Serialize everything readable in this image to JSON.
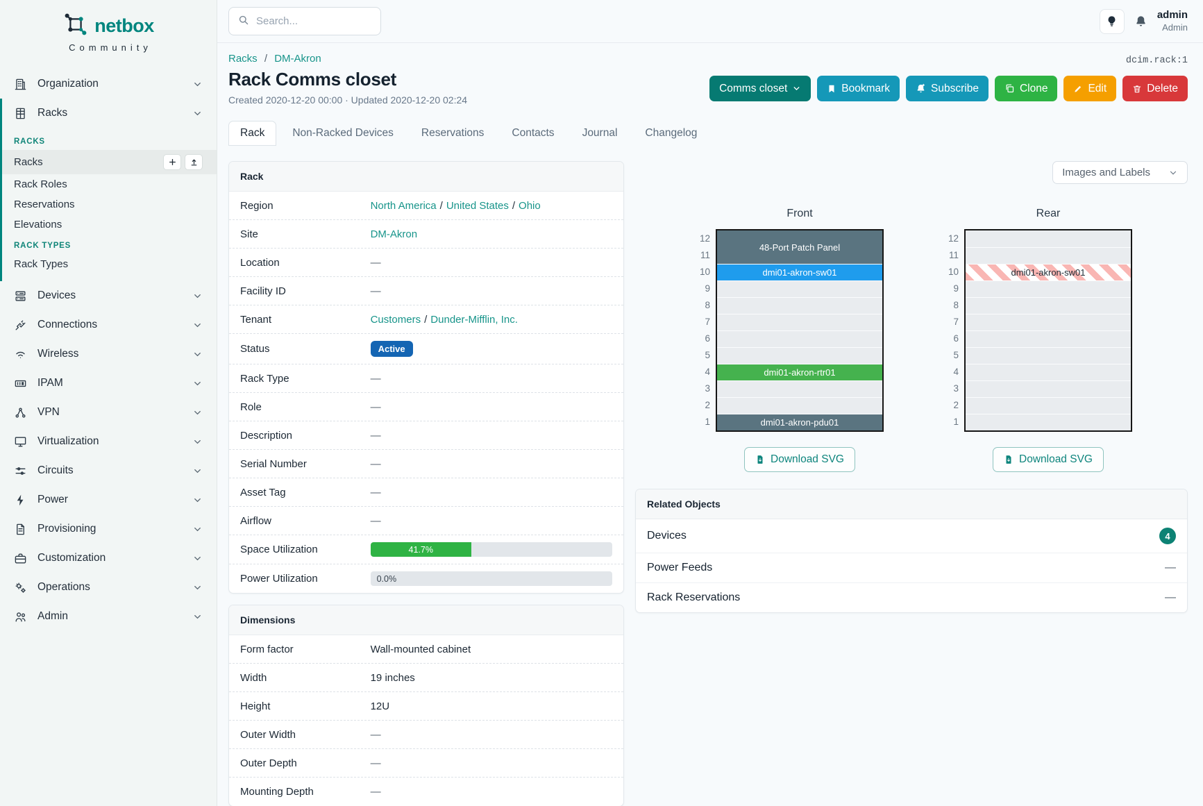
{
  "brand": {
    "name": "netbox",
    "subtitle": "Community"
  },
  "ui": {
    "crumb_sep": "/",
    "link_sep": "/"
  },
  "colors": {
    "brand_teal": "#00857e",
    "link_teal": "#17948a",
    "status_active_bg": "#1465b3",
    "util_green": "#2fb344",
    "device_slate": "#5a7480",
    "device_blue": "#1f9ced",
    "device_green": "#45b24e",
    "badge_teal": "#0d8274",
    "btn_cyan": "#1598b8",
    "btn_green": "#2eb344",
    "btn_orange": "#f59f00",
    "btn_red": "#d8383a"
  },
  "sidebar": {
    "top": [
      {
        "label": "Organization"
      },
      {
        "label": "Racks"
      }
    ],
    "groups": [
      {
        "header": "RACKS",
        "items": [
          {
            "label": "Racks",
            "active": true
          },
          {
            "label": "Rack Roles"
          },
          {
            "label": "Reservations"
          },
          {
            "label": "Elevations"
          }
        ]
      },
      {
        "header": "RACK TYPES",
        "items": [
          {
            "label": "Rack Types"
          }
        ]
      }
    ],
    "items": [
      {
        "label": "Devices"
      },
      {
        "label": "Connections"
      },
      {
        "label": "Wireless"
      },
      {
        "label": "IPAM"
      },
      {
        "label": "VPN"
      },
      {
        "label": "Virtualization"
      },
      {
        "label": "Circuits"
      },
      {
        "label": "Power"
      },
      {
        "label": "Provisioning"
      },
      {
        "label": "Customization"
      },
      {
        "label": "Operations"
      },
      {
        "label": "Admin"
      }
    ]
  },
  "topbar": {
    "search_placeholder": "Search...",
    "user": {
      "username": "admin",
      "role": "Admin"
    }
  },
  "header": {
    "breadcrumb": [
      "Racks",
      "DM-Akron"
    ],
    "title": "Rack Comms closet",
    "meta": "Created 2020-12-20 00:00 · Updated 2020-12-20 02:24",
    "object_id": "dcim.rack:1",
    "actions": {
      "rename": "Comms closet",
      "bookmark": "Bookmark",
      "subscribe": "Subscribe",
      "clone": "Clone",
      "edit": "Edit",
      "delete": "Delete"
    }
  },
  "tabs": [
    {
      "label": "Rack"
    },
    {
      "label": "Non-Racked Devices"
    },
    {
      "label": "Reservations"
    },
    {
      "label": "Contacts"
    },
    {
      "label": "Journal"
    },
    {
      "label": "Changelog"
    }
  ],
  "rack": {
    "title": "Rack",
    "rows": {
      "region": {
        "label": "Region",
        "links": [
          "North America",
          "United States",
          "Ohio"
        ]
      },
      "site": {
        "label": "Site",
        "link": "DM-Akron"
      },
      "location": {
        "label": "Location",
        "value": "—"
      },
      "facility": {
        "label": "Facility ID",
        "value": "—"
      },
      "tenant": {
        "label": "Tenant",
        "links": [
          "Customers",
          "Dunder-Mifflin, Inc."
        ]
      },
      "status": {
        "label": "Status",
        "badge": "Active"
      },
      "rack_type": {
        "label": "Rack Type",
        "value": "—"
      },
      "role": {
        "label": "Role",
        "value": "—"
      },
      "description": {
        "label": "Description",
        "value": "—"
      },
      "serial": {
        "label": "Serial Number",
        "value": "—"
      },
      "asset": {
        "label": "Asset Tag",
        "value": "—"
      },
      "airflow": {
        "label": "Airflow",
        "value": "—"
      },
      "space_util": {
        "label": "Space Utilization",
        "percent": 41.7,
        "text": "41.7%"
      },
      "power_util": {
        "label": "Power Utilization",
        "percent": 0.0,
        "text": "0.0%"
      }
    }
  },
  "dimensions": {
    "title": "Dimensions",
    "rows": [
      {
        "label": "Form factor",
        "value": "Wall-mounted cabinet"
      },
      {
        "label": "Width",
        "value": "19 inches"
      },
      {
        "label": "Height",
        "value": "12U"
      },
      {
        "label": "Outer Width",
        "value": "—"
      },
      {
        "label": "Outer Depth",
        "value": "—"
      },
      {
        "label": "Mounting Depth",
        "value": "—"
      }
    ]
  },
  "elevations": {
    "view_select": "Images and Labels",
    "download_label": "Download SVG",
    "unit_count": 12,
    "front": {
      "title": "Front",
      "units": [
        {
          "top_unit": 12,
          "span": 2,
          "label": "48-Port Patch Panel",
          "variant": "slate"
        },
        {
          "top_unit": 10,
          "span": 1,
          "label": "dmi01-akron-sw01",
          "variant": "blue"
        },
        {
          "top_unit": 9,
          "span": 1,
          "variant": "empty"
        },
        {
          "top_unit": 8,
          "span": 1,
          "variant": "empty"
        },
        {
          "top_unit": 7,
          "span": 1,
          "variant": "empty"
        },
        {
          "top_unit": 6,
          "span": 1,
          "variant": "empty"
        },
        {
          "top_unit": 5,
          "span": 1,
          "variant": "empty"
        },
        {
          "top_unit": 4,
          "span": 1,
          "label": "dmi01-akron-rtr01",
          "variant": "green"
        },
        {
          "top_unit": 3,
          "span": 1,
          "variant": "empty"
        },
        {
          "top_unit": 2,
          "span": 1,
          "variant": "empty"
        },
        {
          "top_unit": 1,
          "span": 1,
          "label": "dmi01-akron-pdu01",
          "variant": "slate"
        }
      ]
    },
    "rear": {
      "title": "Rear",
      "units": [
        {
          "top_unit": 12,
          "span": 1,
          "variant": "empty"
        },
        {
          "top_unit": 11,
          "span": 1,
          "variant": "empty"
        },
        {
          "top_unit": 10,
          "span": 1,
          "label": "dmi01-akron-sw01",
          "variant": "striped"
        },
        {
          "top_unit": 9,
          "span": 1,
          "variant": "empty"
        },
        {
          "top_unit": 8,
          "span": 1,
          "variant": "empty"
        },
        {
          "top_unit": 7,
          "span": 1,
          "variant": "empty"
        },
        {
          "top_unit": 6,
          "span": 1,
          "variant": "empty"
        },
        {
          "top_unit": 5,
          "span": 1,
          "variant": "empty"
        },
        {
          "top_unit": 4,
          "span": 1,
          "variant": "empty"
        },
        {
          "top_unit": 3,
          "span": 1,
          "variant": "empty"
        },
        {
          "top_unit": 2,
          "span": 1,
          "variant": "empty"
        },
        {
          "top_unit": 1,
          "span": 1,
          "variant": "empty"
        }
      ]
    }
  },
  "related": {
    "title": "Related Objects",
    "rows": [
      {
        "label": "Devices",
        "badge": "4"
      },
      {
        "label": "Power Feeds",
        "value": "—"
      },
      {
        "label": "Rack Reservations",
        "value": "—"
      }
    ]
  }
}
